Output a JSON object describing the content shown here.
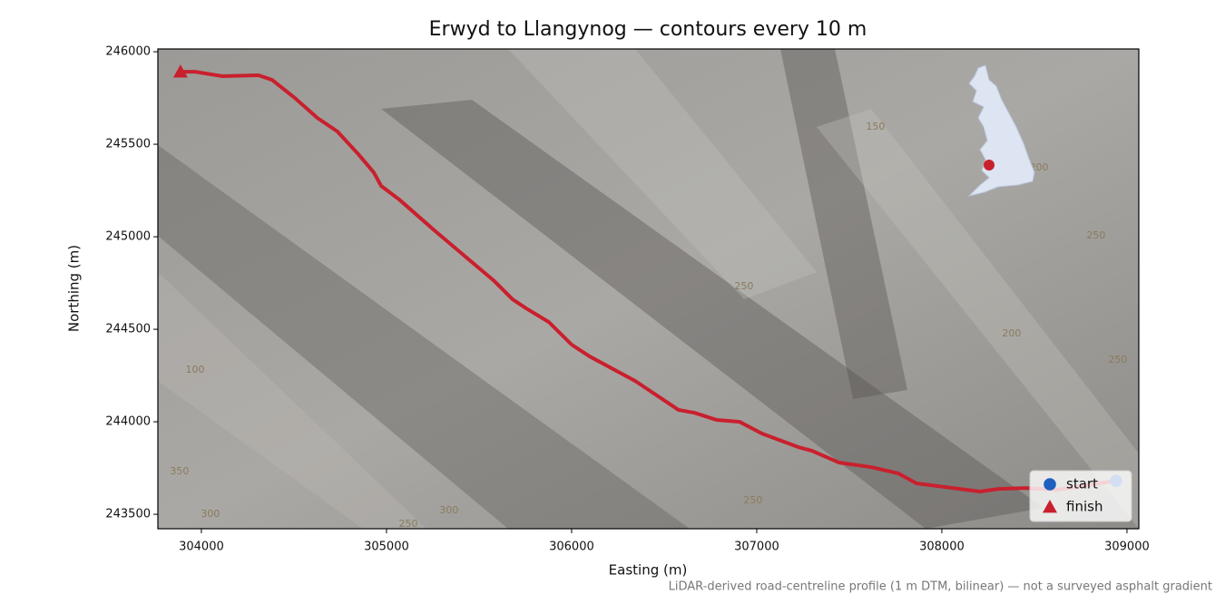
{
  "chart_data": {
    "type": "line",
    "title": "Erwyd to Llangynog — contours every 10 m",
    "x_label": "Easting (m)",
    "y_label": "Northing (m)",
    "footnote": "LiDAR-derived road-centreline profile (1 m DTM, bilinear) — not a surveyed asphalt gradient",
    "xlim": [
      303765,
      309064
    ],
    "ylim": [
      243422,
      246015
    ],
    "xticks": [
      304000,
      305000,
      306000,
      307000,
      308000,
      309000
    ],
    "yticks": [
      243500,
      244000,
      244500,
      245000,
      245500,
      246000
    ],
    "series": [
      {
        "name": "route",
        "color": "#c9202e",
        "x": [
          303887,
          303966,
          304113,
          304309,
          304382,
          304505,
          304627,
          304735,
          304848,
          304931,
          304971,
          305069,
          305265,
          305583,
          305681,
          305755,
          305877,
          306000,
          306098,
          306343,
          306578,
          306662,
          306784,
          306907,
          307029,
          307225,
          307299,
          307446,
          307618,
          307765,
          307863,
          308059,
          308206,
          308304,
          308451,
          308623,
          308941
        ],
        "values": [
          245892,
          245892,
          245868,
          245873,
          245848,
          245750,
          245642,
          245569,
          245446,
          245348,
          245275,
          245201,
          245029,
          244760,
          244662,
          244613,
          244539,
          244417,
          244353,
          244221,
          244064,
          244049,
          244010,
          244000,
          243936,
          243863,
          243843,
          243779,
          243755,
          243721,
          243667,
          243642,
          243623,
          243637,
          243642,
          243632,
          243681
        ]
      }
    ],
    "markers": [
      {
        "name": "start",
        "shape": "circle",
        "color": "#1f5fbf",
        "x": 308941,
        "y": 243681
      },
      {
        "name": "finish",
        "shape": "triangle",
        "color": "#c9202e",
        "x": 303887,
        "y": 245892
      }
    ],
    "contour_labels": [
      {
        "text": "250",
        "x": 306931,
        "y": 244730
      },
      {
        "text": "200",
        "x": 308377,
        "y": 244476
      },
      {
        "text": "250",
        "x": 308951,
        "y": 244333
      },
      {
        "text": "250",
        "x": 308833,
        "y": 245005
      },
      {
        "text": "150",
        "x": 307642,
        "y": 245593
      },
      {
        "text": "200",
        "x": 308525,
        "y": 245373
      },
      {
        "text": "100",
        "x": 303966,
        "y": 244279
      },
      {
        "text": "350",
        "x": 303882,
        "y": 243730
      },
      {
        "text": "300",
        "x": 305338,
        "y": 243520
      },
      {
        "text": "250",
        "x": 306980,
        "y": 243574
      },
      {
        "text": "300",
        "x": 304049,
        "y": 243500
      },
      {
        "text": "250",
        "x": 305118,
        "y": 243446
      }
    ],
    "legend": "lower right"
  }
}
